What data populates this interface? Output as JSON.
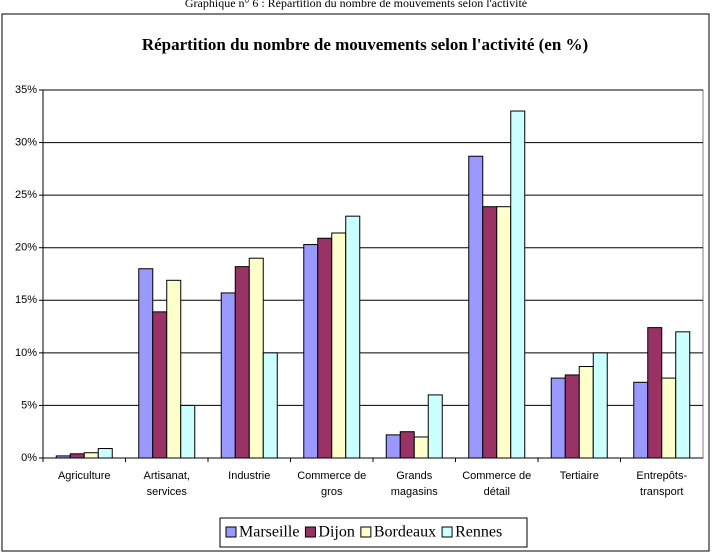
{
  "caption": "Graphique n° 6 : Répartition du nombre de mouvements selon l'activité",
  "chart_data": {
    "type": "bar",
    "title": "Répartition du nombre de mouvements selon l'activité (en %)",
    "categories": [
      "Agriculture",
      "Artisanat,\nservices",
      "Industrie",
      "Commerce de\ngros",
      "Grands\nmagasins",
      "Commerce de\ndétail",
      "Tertiaire",
      "Entrepôts-\ntransport"
    ],
    "series": [
      {
        "name": "Marseille",
        "color": "#9999ff",
        "values": [
          0.2,
          18,
          15.7,
          20.3,
          2.2,
          28.7,
          7.6,
          7.2
        ]
      },
      {
        "name": "Dijon",
        "color": "#993366",
        "values": [
          0.4,
          13.9,
          18.2,
          20.9,
          2.5,
          23.9,
          7.9,
          12.4
        ]
      },
      {
        "name": "Bordeaux",
        "color": "#ffffcc",
        "values": [
          0.5,
          16.9,
          19,
          21.4,
          2,
          23.9,
          8.7,
          7.6
        ]
      },
      {
        "name": "Rennes",
        "color": "#ccffff",
        "values": [
          0.9,
          5,
          10,
          23,
          6,
          33,
          10,
          12
        ]
      }
    ],
    "ylim": [
      0,
      35
    ],
    "yticks": [
      {
        "value": 0,
        "label": "0%"
      },
      {
        "value": 5,
        "label": "5%"
      },
      {
        "value": 10,
        "label": "10%"
      },
      {
        "value": 15,
        "label": "15%"
      },
      {
        "value": 20,
        "label": "20%"
      },
      {
        "value": 25,
        "label": "25%"
      },
      {
        "value": 30,
        "label": "30%"
      },
      {
        "value": 35,
        "label": "35%"
      }
    ],
    "grid": true,
    "legend": "bottom"
  }
}
